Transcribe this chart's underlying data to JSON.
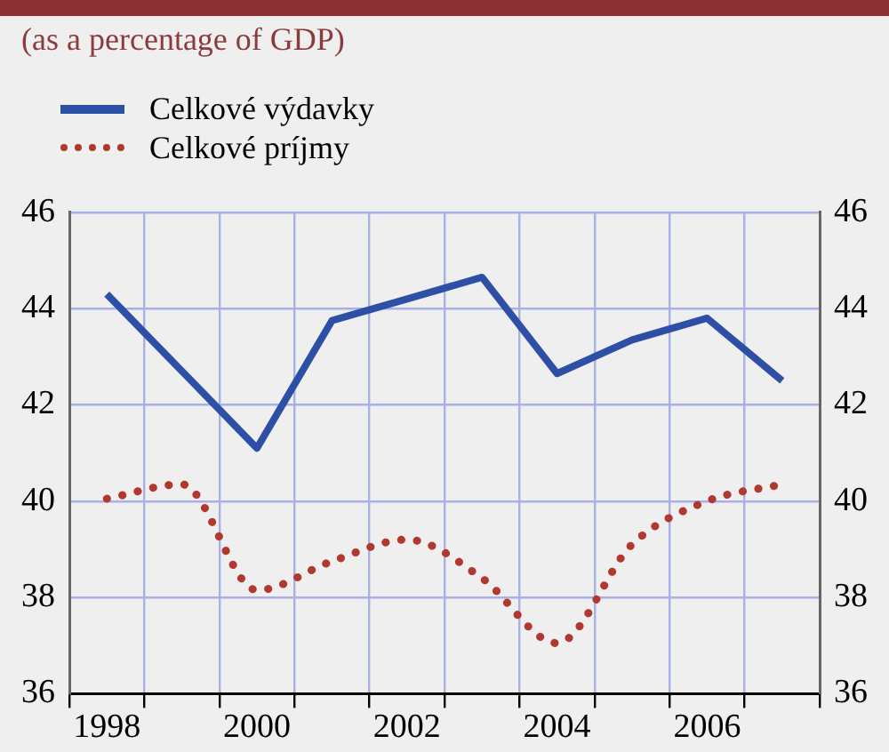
{
  "chart_data": {
    "type": "line",
    "title": "(as a percentage of GDP)",
    "categories": [
      "1998",
      null,
      "2000",
      null,
      "2002",
      null,
      "2004",
      null,
      "2006",
      null
    ],
    "series": [
      {
        "name": "Celkové výdavky",
        "color": "#2e4fa6",
        "line_style": "solid",
        "values": [
          44.3,
          42.7,
          41.1,
          43.75,
          44.2,
          44.65,
          42.65,
          43.35,
          43.8,
          42.5
        ]
      },
      {
        "name": "Celkové príjmy",
        "color": "#b0382f",
        "line_style": "dotted",
        "values": [
          40.05,
          40.35,
          38.15,
          38.75,
          39.2,
          38.4,
          37.05,
          39.1,
          40.0,
          40.35
        ]
      }
    ],
    "ylim": [
      36,
      46
    ],
    "yticks": [
      36,
      38,
      40,
      42,
      44,
      46
    ],
    "y2lim": [
      36,
      46
    ],
    "y2ticks": [
      36,
      38,
      40,
      42,
      44,
      46
    ],
    "grid": true,
    "legend": "top left",
    "marker": "none"
  }
}
